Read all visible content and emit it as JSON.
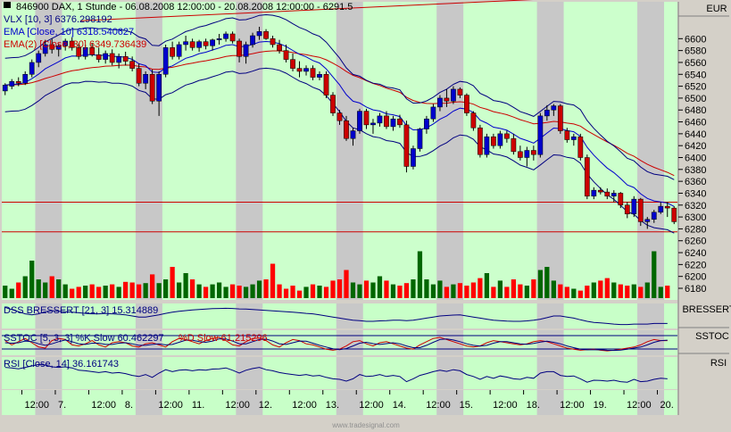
{
  "header": {
    "symbol_line": "846900 DAX, 1 Stunde - 06.08.2008 12:00:00 - 20.08.2008 12:00:00 - 6291.5",
    "vlx_line": "VLX [10, 3] 6376.298192",
    "ema_line": "EMA [Close, 10] 6318.540627",
    "ema2_line": "EMA(2) [Close, 30] 6349.736439"
  },
  "right_labels": {
    "currency": "EUR",
    "dss": "BRESSERT",
    "sstoc": "SSTOC",
    "rsi": "RSI"
  },
  "panels": {
    "dss_line": "DSS BRESSERT [21, 3] 15.314889",
    "sstoc_line_a": "SSTOC [5, 3, 3] %K Slow 60.462297",
    "sstoc_line_b": "%D Slow 61.215296",
    "rsi_line": "RSI [Close, 14] 36.161743"
  },
  "footer": {
    "watermark": "www.tradesignal.com"
  },
  "colors": {
    "plot_bg": "#ccffcc",
    "session_band": "#c8c8c8",
    "up_candle": "#0000cc",
    "down_candle": "#cc0000",
    "up_volume": "#006600",
    "down_volume": "#ff0000",
    "ema_fast": "#0000cc",
    "ema_slow": "#cc0000",
    "band": "#000080",
    "panel_bg": "#c8ffc8"
  },
  "chart_data": {
    "type": "candlestick",
    "title": "846900 DAX, 1 Stunde - 06.08.2008 12:00:00 - 20.08.2008 12:00:00 - 6291.5",
    "ylim": [
      6180,
      6620
    ],
    "y_ticks": [
      6180,
      6200,
      6220,
      6240,
      6260,
      6280,
      6300,
      6320,
      6340,
      6360,
      6380,
      6400,
      6420,
      6440,
      6460,
      6480,
      6500,
      6520,
      6540,
      6560,
      6580,
      6600
    ],
    "x_ticks": [
      "12:00",
      "7.",
      "12:00",
      "8.",
      "12:00",
      "11.",
      "12:00",
      "12.",
      "12:00",
      "13.",
      "12:00",
      "14.",
      "12:00",
      "15.",
      "12:00",
      "18.",
      "12:00",
      "19.",
      "12:00",
      "20."
    ],
    "x_tick_slots": [
      3,
      8,
      13,
      18,
      23,
      28,
      33,
      38,
      43,
      48,
      53,
      58,
      63,
      68,
      73,
      78,
      83,
      88,
      93,
      98
    ],
    "session_bands": [
      [
        5,
        9
      ],
      [
        20,
        24
      ],
      [
        35,
        39
      ],
      [
        50,
        54
      ],
      [
        65,
        69
      ],
      [
        80,
        84
      ],
      [
        95,
        99
      ]
    ],
    "horizontal_lines": [
      6325,
      6275
    ],
    "candles": [
      [
        6512,
        6525,
        6505,
        6522
      ],
      [
        6520,
        6532,
        6515,
        6528
      ],
      [
        6528,
        6535,
        6520,
        6525
      ],
      [
        6525,
        6545,
        6522,
        6540
      ],
      [
        6540,
        6565,
        6535,
        6560
      ],
      [
        6560,
        6580,
        6552,
        6575
      ],
      [
        6575,
        6598,
        6570,
        6590
      ],
      [
        6590,
        6600,
        6575,
        6582
      ],
      [
        6582,
        6592,
        6570,
        6588
      ],
      [
        6588,
        6600,
        6580,
        6596
      ],
      [
        6596,
        6602,
        6580,
        6585
      ],
      [
        6585,
        6592,
        6565,
        6570
      ],
      [
        6570,
        6590,
        6565,
        6585
      ],
      [
        6585,
        6592,
        6570,
        6573
      ],
      [
        6573,
        6585,
        6560,
        6565
      ],
      [
        6565,
        6580,
        6558,
        6575
      ],
      [
        6575,
        6582,
        6555,
        6560
      ],
      [
        6560,
        6575,
        6550,
        6570
      ],
      [
        6570,
        6578,
        6555,
        6562
      ],
      [
        6562,
        6570,
        6545,
        6550
      ],
      [
        6550,
        6558,
        6520,
        6525
      ],
      [
        6525,
        6545,
        6515,
        6540
      ],
      [
        6540,
        6548,
        6490,
        6495
      ],
      [
        6495,
        6545,
        6470,
        6540
      ],
      [
        6540,
        6590,
        6535,
        6585
      ],
      [
        6585,
        6595,
        6565,
        6570
      ],
      [
        6570,
        6595,
        6565,
        6590
      ],
      [
        6590,
        6605,
        6580,
        6595
      ],
      [
        6595,
        6600,
        6580,
        6585
      ],
      [
        6585,
        6598,
        6578,
        6595
      ],
      [
        6595,
        6600,
        6582,
        6588
      ],
      [
        6588,
        6600,
        6580,
        6598
      ],
      [
        6598,
        6608,
        6590,
        6600
      ],
      [
        6600,
        6612,
        6595,
        6608
      ],
      [
        6608,
        6612,
        6592,
        6596
      ],
      [
        6596,
        6600,
        6560,
        6570
      ],
      [
        6570,
        6595,
        6558,
        6590
      ],
      [
        6590,
        6610,
        6585,
        6605
      ],
      [
        6605,
        6620,
        6598,
        6612
      ],
      [
        6612,
        6616,
        6598,
        6600
      ],
      [
        6600,
        6605,
        6585,
        6590
      ],
      [
        6590,
        6598,
        6575,
        6580
      ],
      [
        6580,
        6590,
        6560,
        6565
      ],
      [
        6565,
        6575,
        6545,
        6550
      ],
      [
        6550,
        6562,
        6535,
        6545
      ],
      [
        6545,
        6555,
        6538,
        6550
      ],
      [
        6550,
        6555,
        6530,
        6535
      ],
      [
        6535,
        6545,
        6530,
        6540
      ],
      [
        6540,
        6545,
        6500,
        6505
      ],
      [
        6505,
        6510,
        6470,
        6475
      ],
      [
        6475,
        6480,
        6455,
        6462
      ],
      [
        6462,
        6470,
        6428,
        6432
      ],
      [
        6432,
        6450,
        6420,
        6445
      ],
      [
        6445,
        6482,
        6440,
        6478
      ],
      [
        6478,
        6482,
        6448,
        6455
      ],
      [
        6455,
        6465,
        6440,
        6458
      ],
      [
        6458,
        6475,
        6452,
        6470
      ],
      [
        6470,
        6478,
        6448,
        6452
      ],
      [
        6452,
        6470,
        6445,
        6465
      ],
      [
        6465,
        6472,
        6450,
        6455
      ],
      [
        6455,
        6462,
        6375,
        6385
      ],
      [
        6385,
        6420,
        6380,
        6415
      ],
      [
        6415,
        6450,
        6410,
        6448
      ],
      [
        6448,
        6470,
        6440,
        6465
      ],
      [
        6465,
        6490,
        6460,
        6485
      ],
      [
        6485,
        6505,
        6478,
        6500
      ],
      [
        6500,
        6515,
        6485,
        6495
      ],
      [
        6495,
        6520,
        6490,
        6515
      ],
      [
        6515,
        6518,
        6500,
        6505
      ],
      [
        6505,
        6508,
        6470,
        6475
      ],
      [
        6475,
        6478,
        6445,
        6450
      ],
      [
        6450,
        6455,
        6400,
        6405
      ],
      [
        6405,
        6440,
        6400,
        6435
      ],
      [
        6435,
        6440,
        6415,
        6420
      ],
      [
        6420,
        6445,
        6415,
        6440
      ],
      [
        6440,
        6445,
        6425,
        6432
      ],
      [
        6432,
        6440,
        6405,
        6410
      ],
      [
        6410,
        6420,
        6395,
        6400
      ],
      [
        6400,
        6418,
        6385,
        6412
      ],
      [
        6412,
        6420,
        6395,
        6405
      ],
      [
        6405,
        6475,
        6400,
        6470
      ],
      [
        6470,
        6488,
        6462,
        6480
      ],
      [
        6480,
        6490,
        6470,
        6487
      ],
      [
        6487,
        6490,
        6440,
        6445
      ],
      [
        6445,
        6450,
        6425,
        6430
      ],
      [
        6430,
        6440,
        6420,
        6435
      ],
      [
        6435,
        6440,
        6395,
        6400
      ],
      [
        6400,
        6405,
        6330,
        6335
      ],
      [
        6335,
        6350,
        6330,
        6345
      ],
      [
        6345,
        6350,
        6338,
        6342
      ],
      [
        6342,
        6348,
        6330,
        6335
      ],
      [
        6335,
        6345,
        6325,
        6340
      ],
      [
        6340,
        6342,
        6315,
        6320
      ],
      [
        6320,
        6325,
        6298,
        6305
      ],
      [
        6305,
        6335,
        6300,
        6330
      ],
      [
        6330,
        6332,
        6285,
        6292
      ],
      [
        6292,
        6300,
        6280,
        6296
      ],
      [
        6296,
        6312,
        6290,
        6308
      ],
      [
        6308,
        6325,
        6305,
        6318
      ],
      [
        6318,
        6325,
        6300,
        6315
      ],
      [
        6315,
        6318,
        6288,
        6292
      ]
    ],
    "volume_max": 100,
    "volume": [
      20,
      15,
      25,
      35,
      60,
      30,
      25,
      35,
      30,
      22,
      15,
      18,
      20,
      22,
      18,
      20,
      22,
      18,
      26,
      25,
      22,
      24,
      38,
      24,
      30,
      50,
      25,
      40,
      30,
      22,
      18,
      22,
      25,
      18,
      22,
      20,
      18,
      22,
      28,
      30,
      55,
      22,
      15,
      20,
      12,
      18,
      22,
      20,
      18,
      28,
      30,
      45,
      25,
      22,
      28,
      25,
      35,
      28,
      22,
      20,
      24,
      30,
      75,
      30,
      22,
      28,
      18,
      22,
      24,
      20,
      25,
      32,
      40,
      18,
      28,
      18,
      30,
      22,
      20,
      30,
      45,
      50,
      28,
      22,
      18,
      15,
      12,
      20,
      25,
      28,
      32,
      25,
      22,
      20,
      22,
      18,
      25,
      75,
      18,
      20
    ],
    "dss": [
      0.9,
      0.8,
      0.7,
      0.6,
      0.55,
      0.6,
      0.7,
      0.75,
      0.72,
      0.7,
      0.68,
      0.65,
      0.62,
      0.6,
      0.6,
      0.62,
      0.6,
      0.58,
      0.55,
      0.5,
      0.45,
      0.45,
      0.5,
      0.55,
      0.62,
      0.68,
      0.72,
      0.75,
      0.78,
      0.8,
      0.82,
      0.84,
      0.85,
      0.86,
      0.85,
      0.83,
      0.82,
      0.8,
      0.78,
      0.76,
      0.74,
      0.72,
      0.7,
      0.68,
      0.65,
      0.62,
      0.6,
      0.55,
      0.5,
      0.45,
      0.4,
      0.35,
      0.3,
      0.28,
      0.25,
      0.25,
      0.27,
      0.28,
      0.3,
      0.3,
      0.28,
      0.3,
      0.35,
      0.4,
      0.45,
      0.5,
      0.52,
      0.54,
      0.55,
      0.5,
      0.45,
      0.4,
      0.35,
      0.3,
      0.28,
      0.26,
      0.25,
      0.25,
      0.27,
      0.3,
      0.35,
      0.42,
      0.5,
      0.5,
      0.45,
      0.4,
      0.32,
      0.25,
      0.2,
      0.18,
      0.15,
      0.12,
      0.1,
      0.1,
      0.12,
      0.12,
      0.12,
      0.15,
      0.15,
      0.15
    ],
    "sstoc_k": [
      0.6,
      0.4,
      0.55,
      0.7,
      0.5,
      0.3,
      0.25,
      0.6,
      0.7,
      0.65,
      0.4,
      0.35,
      0.45,
      0.6,
      0.4,
      0.3,
      0.5,
      0.55,
      0.5,
      0.35,
      0.3,
      0.45,
      0.5,
      0.4,
      0.3,
      0.55,
      0.7,
      0.65,
      0.55,
      0.45,
      0.6,
      0.7,
      0.75,
      0.6,
      0.4,
      0.35,
      0.55,
      0.7,
      0.72,
      0.6,
      0.4,
      0.3,
      0.5,
      0.65,
      0.6,
      0.45,
      0.4,
      0.3,
      0.2,
      0.15,
      0.2,
      0.35,
      0.55,
      0.6,
      0.45,
      0.35,
      0.5,
      0.55,
      0.45,
      0.35,
      0.25,
      0.2,
      0.4,
      0.55,
      0.7,
      0.75,
      0.65,
      0.55,
      0.45,
      0.35,
      0.3,
      0.35,
      0.5,
      0.6,
      0.55,
      0.5,
      0.45,
      0.4,
      0.45,
      0.55,
      0.6,
      0.55,
      0.45,
      0.35,
      0.25,
      0.2,
      0.15,
      0.18,
      0.2,
      0.15,
      0.12,
      0.15,
      0.2,
      0.25,
      0.3,
      0.4,
      0.55,
      0.65,
      0.6,
      0.6
    ],
    "sstoc_d": [
      0.5,
      0.48,
      0.5,
      0.58,
      0.55,
      0.45,
      0.38,
      0.45,
      0.55,
      0.63,
      0.55,
      0.45,
      0.42,
      0.48,
      0.48,
      0.42,
      0.42,
      0.48,
      0.5,
      0.45,
      0.38,
      0.38,
      0.42,
      0.45,
      0.4,
      0.42,
      0.52,
      0.62,
      0.62,
      0.55,
      0.52,
      0.58,
      0.68,
      0.68,
      0.58,
      0.45,
      0.45,
      0.55,
      0.65,
      0.67,
      0.58,
      0.45,
      0.42,
      0.5,
      0.58,
      0.57,
      0.48,
      0.38,
      0.3,
      0.22,
      0.18,
      0.23,
      0.35,
      0.48,
      0.52,
      0.46,
      0.42,
      0.46,
      0.5,
      0.45,
      0.35,
      0.27,
      0.27,
      0.38,
      0.52,
      0.65,
      0.68,
      0.63,
      0.55,
      0.45,
      0.38,
      0.34,
      0.38,
      0.48,
      0.55,
      0.55,
      0.5,
      0.45,
      0.43,
      0.47,
      0.53,
      0.57,
      0.52,
      0.45,
      0.35,
      0.27,
      0.2,
      0.17,
      0.17,
      0.18,
      0.15,
      0.14,
      0.16,
      0.2,
      0.25,
      0.3,
      0.4,
      0.52,
      0.6,
      0.62
    ],
    "rsi": [
      0.7,
      0.68,
      0.65,
      0.7,
      0.75,
      0.8,
      0.78,
      0.72,
      0.7,
      0.72,
      0.68,
      0.6,
      0.58,
      0.55,
      0.52,
      0.55,
      0.5,
      0.52,
      0.48,
      0.42,
      0.38,
      0.45,
      0.35,
      0.5,
      0.62,
      0.55,
      0.6,
      0.62,
      0.58,
      0.62,
      0.6,
      0.64,
      0.65,
      0.68,
      0.6,
      0.5,
      0.6,
      0.66,
      0.7,
      0.62,
      0.58,
      0.52,
      0.48,
      0.45,
      0.42,
      0.45,
      0.4,
      0.42,
      0.35,
      0.3,
      0.28,
      0.22,
      0.3,
      0.45,
      0.38,
      0.4,
      0.45,
      0.38,
      0.42,
      0.38,
      0.2,
      0.3,
      0.42,
      0.48,
      0.55,
      0.6,
      0.56,
      0.62,
      0.58,
      0.45,
      0.38,
      0.28,
      0.38,
      0.32,
      0.4,
      0.36,
      0.3,
      0.28,
      0.35,
      0.32,
      0.5,
      0.55,
      0.55,
      0.42,
      0.38,
      0.4,
      0.3,
      0.18,
      0.25,
      0.24,
      0.22,
      0.25,
      0.2,
      0.18,
      0.28,
      0.2,
      0.22,
      0.28,
      0.32,
      0.3
    ]
  }
}
